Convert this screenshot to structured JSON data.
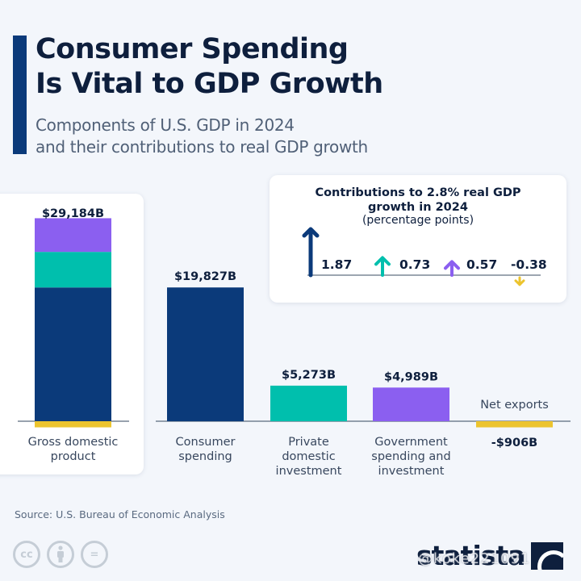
{
  "header": {
    "title_line1": "Consumer Spending",
    "title_line2": "Is Vital to GDP Growth",
    "subtitle_line1": "Components of U.S. GDP in 2024",
    "subtitle_line2": "and their contributions to real GDP growth"
  },
  "colors": {
    "consumer": "#0b3a7a",
    "investment": "#00bfad",
    "government": "#8b5ff0",
    "net_exports": "#ecc42e",
    "accent": "#0b3a7a",
    "baseline": "#5a6a7e"
  },
  "chart_data": [
    {
      "type": "bar",
      "title": "Components of U.S. GDP in 2024",
      "unit": "billion USD",
      "categories": [
        "Gross domestic product",
        "Consumer spending",
        "Private domestic investment",
        "Government spending and investment",
        "Net exports"
      ],
      "category_lines": [
        [
          "Gross domestic",
          "product"
        ],
        [
          "Consumer",
          "spending"
        ],
        [
          "Private",
          "domestic",
          "investment"
        ],
        [
          "Government",
          "spending and",
          "investment"
        ],
        [
          "Net exports"
        ]
      ],
      "values": [
        29184,
        19827,
        5273,
        4989,
        -906
      ],
      "value_labels": [
        "$29,184B",
        "$19,827B",
        "$5,273B",
        "$4,989B",
        "-$906B"
      ],
      "stacked_gdp_components": [
        {
          "name": "Consumer spending",
          "value": 19827,
          "color_key": "consumer"
        },
        {
          "name": "Private domestic investment",
          "value": 5273,
          "color_key": "investment"
        },
        {
          "name": "Government spending and investment",
          "value": 4989,
          "color_key": "government"
        },
        {
          "name": "Net exports",
          "value": -906,
          "color_key": "net_exports"
        }
      ],
      "xlabel": "",
      "ylabel": "",
      "grid": false
    },
    {
      "type": "bar",
      "title": "Contributions to 2.8% real GDP growth in 2024",
      "subtitle": "(percentage points)",
      "title_line1": "Contributions to 2.8% real GDP",
      "title_line2": "growth in 2024",
      "categories": [
        "Consumer spending",
        "Private domestic investment",
        "Government spending and investment",
        "Net exports"
      ],
      "values": [
        1.87,
        0.73,
        0.57,
        -0.38
      ],
      "value_labels": [
        "1.87",
        "0.73",
        "0.57",
        "-0.38"
      ],
      "total_growth_pct": 2.8,
      "marker": "arrow"
    }
  ],
  "footer": {
    "source": "Source: U.S. Bureau of Economic Analysis",
    "license_icons": [
      "cc-icon",
      "by-attribution-icon",
      "no-derivatives-icon"
    ],
    "cc_label": "cc",
    "eq_label": "=",
    "brand": "statista",
    "watermark": "@koke221091"
  }
}
